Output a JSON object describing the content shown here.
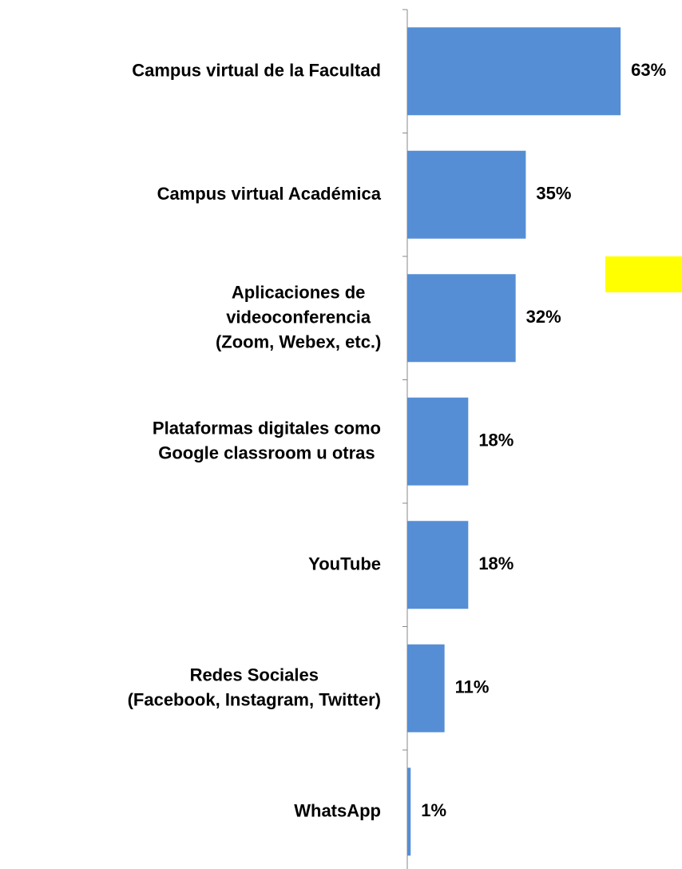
{
  "chart_data": {
    "type": "bar",
    "orientation": "horizontal",
    "categories": [
      "Campus virtual de la Facultad",
      "Campus virtual Académica",
      "Aplicaciones de\nvideoconferencia\n(Zoom, Webex, etc.)",
      "Plataformas digitales como\nGoogle classroom u otras",
      "YouTube",
      "Redes Sociales\n(Facebook, Instagram, Twitter)",
      "WhatsApp"
    ],
    "values": [
      63,
      35,
      32,
      18,
      18,
      11,
      1
    ],
    "value_labels": [
      "63%",
      "35%",
      "32%",
      "18%",
      "18%",
      "11%",
      "1%"
    ],
    "color": "#558ed5"
  }
}
